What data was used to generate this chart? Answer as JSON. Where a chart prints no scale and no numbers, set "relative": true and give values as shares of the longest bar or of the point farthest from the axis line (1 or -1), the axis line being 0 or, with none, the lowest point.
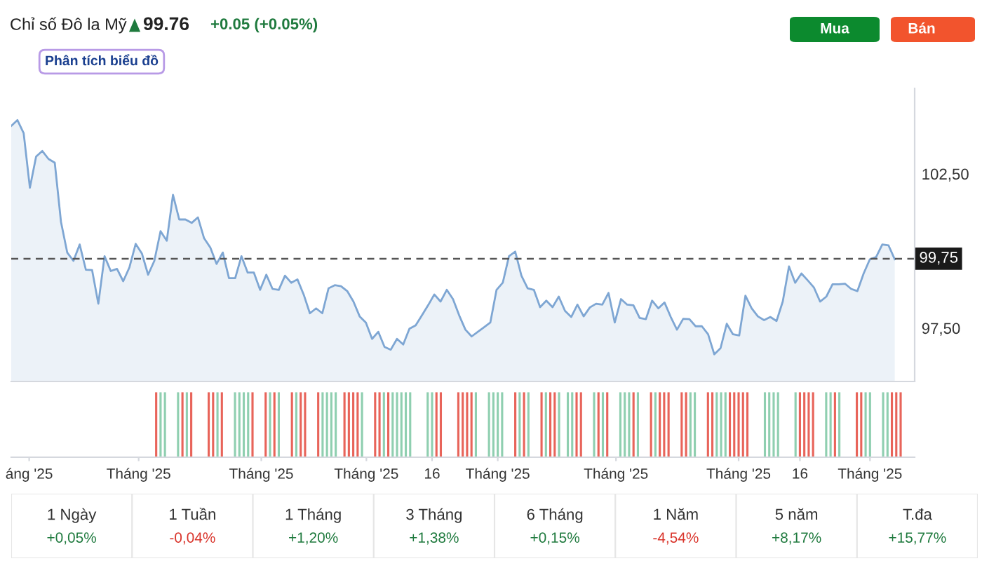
{
  "chart_data": [
    {
      "type": "area",
      "title": "Chỉ số Đô la Mỹ",
      "annotations": [
        "99.76",
        "+0.05 (+0.05%)",
        "Phân tích biểu đồ",
        "Mua",
        "Bán"
      ],
      "ylim": [
        95.77,
        105.27
      ],
      "yticks": [
        {
          "value": 97.5,
          "label": "97,50"
        },
        {
          "value": 102.5,
          "label": "102,50"
        }
      ],
      "tick_labels": "y",
      "grid": false,
      "legend": false,
      "ref_lines": [
        {
          "axis": "y",
          "value": 99.75,
          "label": "99,75",
          "color": "#555555",
          "line_style": "dashed"
        }
      ],
      "categories": [
        null,
        null,
        null,
        null,
        null,
        null,
        null,
        null,
        null,
        null,
        null,
        null,
        null,
        null,
        null,
        null,
        null,
        null,
        null,
        null,
        null,
        null,
        null,
        null,
        null,
        null,
        null,
        null,
        null,
        null,
        null,
        null,
        null,
        null,
        null,
        null,
        null,
        null,
        null,
        null,
        null,
        null,
        null,
        null,
        null,
        null,
        null,
        null,
        null,
        null,
        null,
        null,
        null,
        null,
        null,
        null,
        null,
        null,
        null,
        null,
        null,
        null,
        null,
        null,
        null,
        null,
        null,
        null,
        null,
        null,
        null,
        null,
        null,
        null,
        null,
        null,
        null,
        null,
        null,
        null,
        null,
        null,
        null,
        null,
        null,
        null,
        null,
        null,
        null,
        null,
        null,
        null,
        null,
        null,
        null,
        null,
        null,
        null,
        null,
        null,
        null,
        null,
        null,
        null,
        null,
        null,
        null,
        null,
        null,
        null,
        null,
        null,
        null,
        null,
        null,
        null,
        null,
        null,
        null,
        null,
        null,
        null,
        null,
        null,
        null,
        null,
        null,
        null,
        null,
        null,
        null,
        null,
        null,
        null,
        null,
        null,
        null,
        null,
        null,
        null,
        null,
        null,
        null
      ],
      "series": [
        {
          "color": "#7ea6d3",
          "values": [
            104.05,
            104.24,
            103.82,
            102.05,
            103.06,
            103.24,
            102.98,
            102.86,
            100.94,
            99.95,
            99.68,
            100.21,
            99.39,
            99.38,
            98.29,
            99.83,
            99.35,
            99.42,
            99.02,
            99.47,
            100.23,
            99.92,
            99.23,
            99.68,
            100.64,
            100.33,
            101.82,
            101.02,
            101.02,
            100.91,
            101.09,
            100.41,
            100.11,
            99.58,
            99.95,
            99.12,
            99.12,
            99.83,
            99.3,
            99.3,
            98.74,
            99.23,
            98.77,
            98.74,
            99.2,
            98.97,
            99.08,
            98.59,
            97.98,
            98.14,
            97.98,
            98.79,
            98.89,
            98.86,
            98.7,
            98.36,
            97.88,
            97.68,
            97.15,
            97.38,
            96.89,
            96.8,
            97.15,
            96.97,
            97.48,
            97.59,
            97.91,
            98.24,
            98.59,
            98.36,
            98.74,
            98.44,
            97.91,
            97.45,
            97.23,
            97.38,
            97.53,
            97.68,
            98.74,
            98.97,
            99.83,
            99.98,
            99.2,
            98.79,
            98.74,
            98.18,
            98.39,
            98.18,
            98.52,
            98.06,
            97.86,
            98.26,
            97.88,
            98.17,
            98.29,
            98.26,
            98.64,
            97.68,
            98.44,
            98.26,
            98.24,
            97.83,
            97.79,
            98.39,
            98.14,
            98.33,
            97.86,
            97.45,
            97.8,
            97.79,
            97.56,
            97.56,
            97.3,
            96.65,
            96.85,
            97.64,
            97.3,
            97.26,
            98.55,
            98.14,
            97.88,
            97.76,
            97.86,
            97.73,
            98.36,
            99.5,
            98.97,
            99.27,
            99.05,
            98.82,
            98.36,
            98.52,
            98.92,
            98.92,
            98.94,
            98.77,
            98.7,
            99.27,
            99.73,
            99.8,
            100.21,
            100.18,
            99.73
          ]
        }
      ]
    },
    {
      "type": "bar",
      "relative": true,
      "tick_labels": "x",
      "grid": false,
      "categories": [
        null,
        null,
        null,
        null,
        "áng '25",
        null,
        null,
        null,
        null,
        null,
        null,
        null,
        null,
        null,
        null,
        null,
        null,
        null,
        null,
        null,
        null,
        null,
        null,
        null,
        null,
        null,
        null,
        null,
        null,
        "Tháng '25",
        null,
        null,
        null,
        null,
        null,
        null,
        null,
        null,
        null,
        null,
        null,
        null,
        null,
        null,
        null,
        null,
        null,
        null,
        null,
        null,
        null,
        null,
        null,
        null,
        null,
        null,
        null,
        "Tháng '25",
        null,
        null,
        null,
        null,
        null,
        null,
        null,
        null,
        null,
        null,
        null,
        null,
        null,
        null,
        null,
        null,
        null,
        null,
        null,
        null,
        null,
        null,
        null,
        "Tháng '25",
        null,
        null,
        null,
        null,
        null,
        null,
        null,
        null,
        null,
        null,
        null,
        null,
        null,
        null,
        "16",
        null,
        null,
        null,
        null,
        null,
        null,
        null,
        null,
        null,
        null,
        null,
        null,
        null,
        null,
        "Tháng '25",
        null,
        null,
        null,
        null,
        null,
        null,
        null,
        null,
        null,
        null,
        null,
        null,
        null,
        null,
        null,
        null,
        null,
        null,
        null,
        null,
        null,
        null,
        null,
        null,
        null,
        null,
        "Tháng '25",
        null,
        null,
        null,
        null,
        null,
        null,
        null,
        null,
        null,
        null,
        null,
        null,
        null,
        null,
        null,
        null,
        null,
        null,
        null,
        null,
        null,
        null,
        null,
        null,
        null,
        null,
        null,
        "Tháng '25",
        null,
        null,
        null,
        null,
        null,
        null,
        null,
        null,
        null,
        null,
        null,
        null,
        null,
        "16",
        null,
        null,
        null,
        null,
        null,
        null,
        null,
        null,
        null,
        null,
        null,
        null,
        null,
        null,
        null,
        "Tháng '25",
        null,
        null,
        null,
        null,
        null,
        null,
        null
      ],
      "values": [
        null,
        null,
        null,
        null,
        null,
        null,
        null,
        null,
        null,
        null,
        null,
        null,
        null,
        null,
        null,
        null,
        null,
        null,
        null,
        null,
        null,
        null,
        null,
        null,
        null,
        null,
        null,
        null,
        null,
        null,
        null,
        null,
        null,
        1,
        1,
        1,
        null,
        null,
        1,
        1,
        1,
        1,
        null,
        null,
        null,
        1,
        1,
        1,
        1,
        null,
        null,
        1,
        1,
        1,
        1,
        1,
        null,
        null,
        1,
        1,
        1,
        1,
        null,
        null,
        1,
        1,
        1,
        1,
        null,
        null,
        1,
        1,
        1,
        1,
        1,
        null,
        1,
        1,
        1,
        1,
        1,
        null,
        null,
        1,
        1,
        1,
        1,
        1,
        1,
        1,
        1,
        1,
        null,
        null,
        null,
        1,
        1,
        1,
        1,
        null,
        null,
        null,
        1,
        1,
        1,
        1,
        1,
        null,
        null,
        1,
        1,
        1,
        1,
        null,
        null,
        1,
        1,
        1,
        1,
        null,
        null,
        1,
        1,
        1,
        1,
        1,
        null,
        1,
        1,
        1,
        1,
        null,
        null,
        1,
        1,
        1,
        1,
        null,
        null,
        1,
        1,
        1,
        1,
        1,
        null,
        null,
        1,
        1,
        1,
        1,
        1,
        null,
        null,
        1,
        1,
        1,
        1,
        null,
        null,
        1,
        1,
        1,
        1,
        1,
        1,
        1,
        1,
        1,
        1,
        null,
        null,
        null,
        1,
        1,
        1,
        1,
        null,
        null,
        null,
        1,
        1,
        1,
        1,
        1,
        null,
        null,
        1,
        1,
        1,
        1,
        null,
        null,
        null,
        1,
        1,
        1,
        1,
        null,
        null,
        1,
        1,
        1,
        1,
        1
      ],
      "colors": [
        null,
        null,
        null,
        null,
        null,
        null,
        null,
        null,
        null,
        null,
        null,
        null,
        null,
        null,
        null,
        null,
        null,
        null,
        null,
        null,
        null,
        null,
        null,
        null,
        null,
        null,
        null,
        null,
        null,
        null,
        null,
        null,
        null,
        "#e8645a",
        "#8fcfb0",
        "#8fcfb0",
        null,
        null,
        "#8fcfb0",
        "#e8645a",
        "#8fcfb0",
        "#e8645a",
        null,
        null,
        null,
        "#e8645a",
        "#e8645a",
        "#8fcfb0",
        "#e8645a",
        null,
        null,
        "#8fcfb0",
        "#8fcfb0",
        "#8fcfb0",
        "#8fcfb0",
        "#e8645a",
        null,
        null,
        "#e8645a",
        "#8fcfb0",
        "#e8645a",
        "#8fcfb0",
        null,
        null,
        "#e8645a",
        "#8fcfb0",
        "#e8645a",
        "#e8645a",
        null,
        null,
        "#e8645a",
        "#8fcfb0",
        "#8fcfb0",
        "#8fcfb0",
        "#8fcfb0",
        null,
        "#e8645a",
        "#e8645a",
        "#e8645a",
        "#e8645a",
        "#8fcfb0",
        null,
        null,
        "#e8645a",
        "#e8645a",
        "#8fcfb0",
        "#e8645a",
        "#8fcfb0",
        "#8fcfb0",
        "#8fcfb0",
        "#8fcfb0",
        "#8fcfb0",
        null,
        null,
        null,
        "#8fcfb0",
        "#8fcfb0",
        "#e8645a",
        "#e8645a",
        null,
        null,
        null,
        "#e8645a",
        "#e8645a",
        "#e8645a",
        "#e8645a",
        "#8fcfb0",
        null,
        null,
        "#8fcfb0",
        "#8fcfb0",
        "#8fcfb0",
        "#8fcfb0",
        null,
        null,
        "#e8645a",
        "#8fcfb0",
        "#e8645a",
        "#8fcfb0",
        null,
        null,
        "#e8645a",
        "#8fcfb0",
        "#e8645a",
        "#e8645a",
        "#8fcfb0",
        null,
        "#8fcfb0",
        "#8fcfb0",
        "#e8645a",
        "#e8645a",
        null,
        null,
        "#8fcfb0",
        "#e8645a",
        "#8fcfb0",
        "#e8645a",
        null,
        null,
        "#8fcfb0",
        "#8fcfb0",
        "#8fcfb0",
        "#e8645a",
        "#8fcfb0",
        null,
        null,
        "#e8645a",
        "#8fcfb0",
        "#e8645a",
        "#e8645a",
        "#e8645a",
        null,
        null,
        "#e8645a",
        "#e8645a",
        "#8fcfb0",
        "#8fcfb0",
        null,
        null,
        "#e8645a",
        "#e8645a",
        "#8fcfb0",
        "#8fcfb0",
        "#8fcfb0",
        "#e8645a",
        "#e8645a",
        "#e8645a",
        "#e8645a",
        "#e8645a",
        null,
        null,
        null,
        "#8fcfb0",
        "#8fcfb0",
        "#8fcfb0",
        "#8fcfb0",
        null,
        null,
        null,
        "#8fcfb0",
        "#e8645a",
        "#e8645a",
        "#e8645a",
        "#e8645a",
        null,
        null,
        "#8fcfb0",
        "#8fcfb0",
        "#e8645a",
        "#8fcfb0",
        null,
        null,
        null,
        "#e8645a",
        "#e8645a",
        "#8fcfb0",
        "#8fcfb0",
        null,
        null,
        "#8fcfb0",
        "#8fcfb0",
        "#e8645a",
        "#e8645a",
        "#e8645a"
      ]
    },
    {
      "type": "other",
      "categories": [
        "1 Ngày",
        "1 Tuần",
        "1 Tháng",
        "3 Tháng",
        "6 Tháng",
        "1 Năm",
        "5 năm",
        "T.đa"
      ],
      "value_labels": [
        "+0,05%",
        "-0,04%",
        "+1,20%",
        "+1,38%",
        "+0,15%",
        "-4,54%",
        "+8,17%",
        "+15,77%"
      ],
      "colors": [
        "#1f7a3e",
        "#d9342b",
        "#1f7a3e",
        "#1f7a3e",
        "#1f7a3e",
        "#d9342b",
        "#1f7a3e",
        "#1f7a3e"
      ]
    }
  ]
}
